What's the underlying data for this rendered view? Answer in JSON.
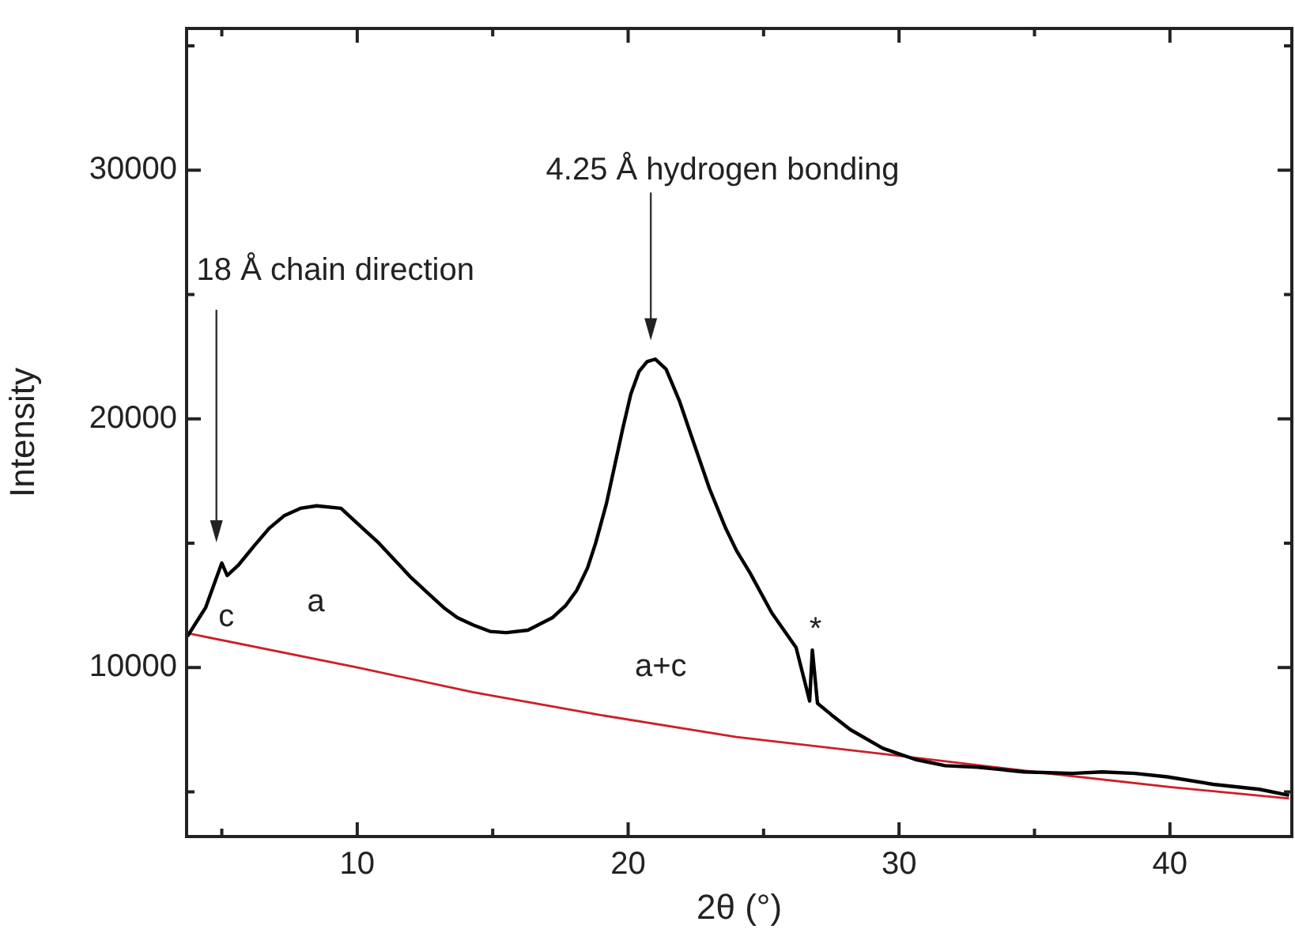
{
  "chart_data": {
    "type": "line",
    "xlabel": "2θ (°)",
    "ylabel": "Intensity",
    "xlim": [
      3.7,
      44.5
    ],
    "xticks": [
      {
        "value": 5,
        "label": null
      },
      10,
      {
        "value": 15,
        "label": null
      },
      20,
      {
        "value": 25,
        "label": null
      },
      30,
      {
        "value": 35,
        "label": null
      },
      40
    ],
    "ylim": [
      3200,
      35700
    ],
    "yticks": [
      {
        "value": 5000,
        "label": null
      },
      10000,
      {
        "value": 15000,
        "label": null
      },
      20000,
      {
        "value": 25000,
        "label": null
      },
      30000,
      {
        "value": 35000,
        "label": null
      }
    ],
    "grid": false,
    "legend": false,
    "marker": "none",
    "line_style": "solid",
    "series": [
      {
        "color": "#000000",
        "x": [
          3.73,
          4.4,
          5.0,
          5.2,
          5.6,
          6.2,
          6.75,
          7.3,
          7.9,
          8.5,
          9.4,
          10.2,
          10.8,
          11.4,
          12.0,
          12.6,
          13.2,
          13.7,
          14.3,
          14.9,
          15.5,
          16.3,
          17.2,
          17.7,
          18.1,
          18.5,
          18.8,
          19.2,
          19.5,
          19.8,
          20.1,
          20.4,
          20.7,
          21.0,
          21.4,
          21.9,
          22.4,
          23.0,
          23.6,
          24.0,
          24.5,
          25.3,
          26.2,
          26.7,
          26.8,
          26.99,
          27.5,
          28.2,
          29.4,
          30.6,
          31.7,
          32.9,
          34.6,
          36.4,
          37.5,
          38.7,
          39.9,
          41.6,
          43.3,
          44.4
        ],
        "values": [
          11250,
          12400,
          14200,
          13700,
          14100,
          14900,
          15600,
          16100,
          16400,
          16500,
          16400,
          15600,
          15000,
          14300,
          13600,
          13000,
          12400,
          12000,
          11700,
          11450,
          11400,
          11500,
          12000,
          12500,
          13100,
          14000,
          15000,
          16600,
          18100,
          19600,
          21000,
          21900,
          22300,
          22400,
          22000,
          20700,
          19100,
          17200,
          15600,
          14700,
          13800,
          12200,
          10800,
          8650,
          10700,
          8560,
          8100,
          7500,
          6750,
          6300,
          6050,
          5990,
          5800,
          5740,
          5800,
          5740,
          5600,
          5300,
          5100,
          4860
        ]
      },
      {
        "color": "#cc1f2a",
        "x": [
          3.73,
          10.0,
          14.3,
          18.9,
          24.0,
          30.0,
          35.0,
          40.0,
          44.4
        ],
        "values": [
          11380,
          10000,
          9000,
          8100,
          7200,
          6450,
          5800,
          5190,
          4730
        ]
      }
    ],
    "annotations": [
      "18 Å chain direction",
      "4.25 Å hydrogen bonding",
      "c",
      "a",
      "a+c",
      "*"
    ]
  }
}
